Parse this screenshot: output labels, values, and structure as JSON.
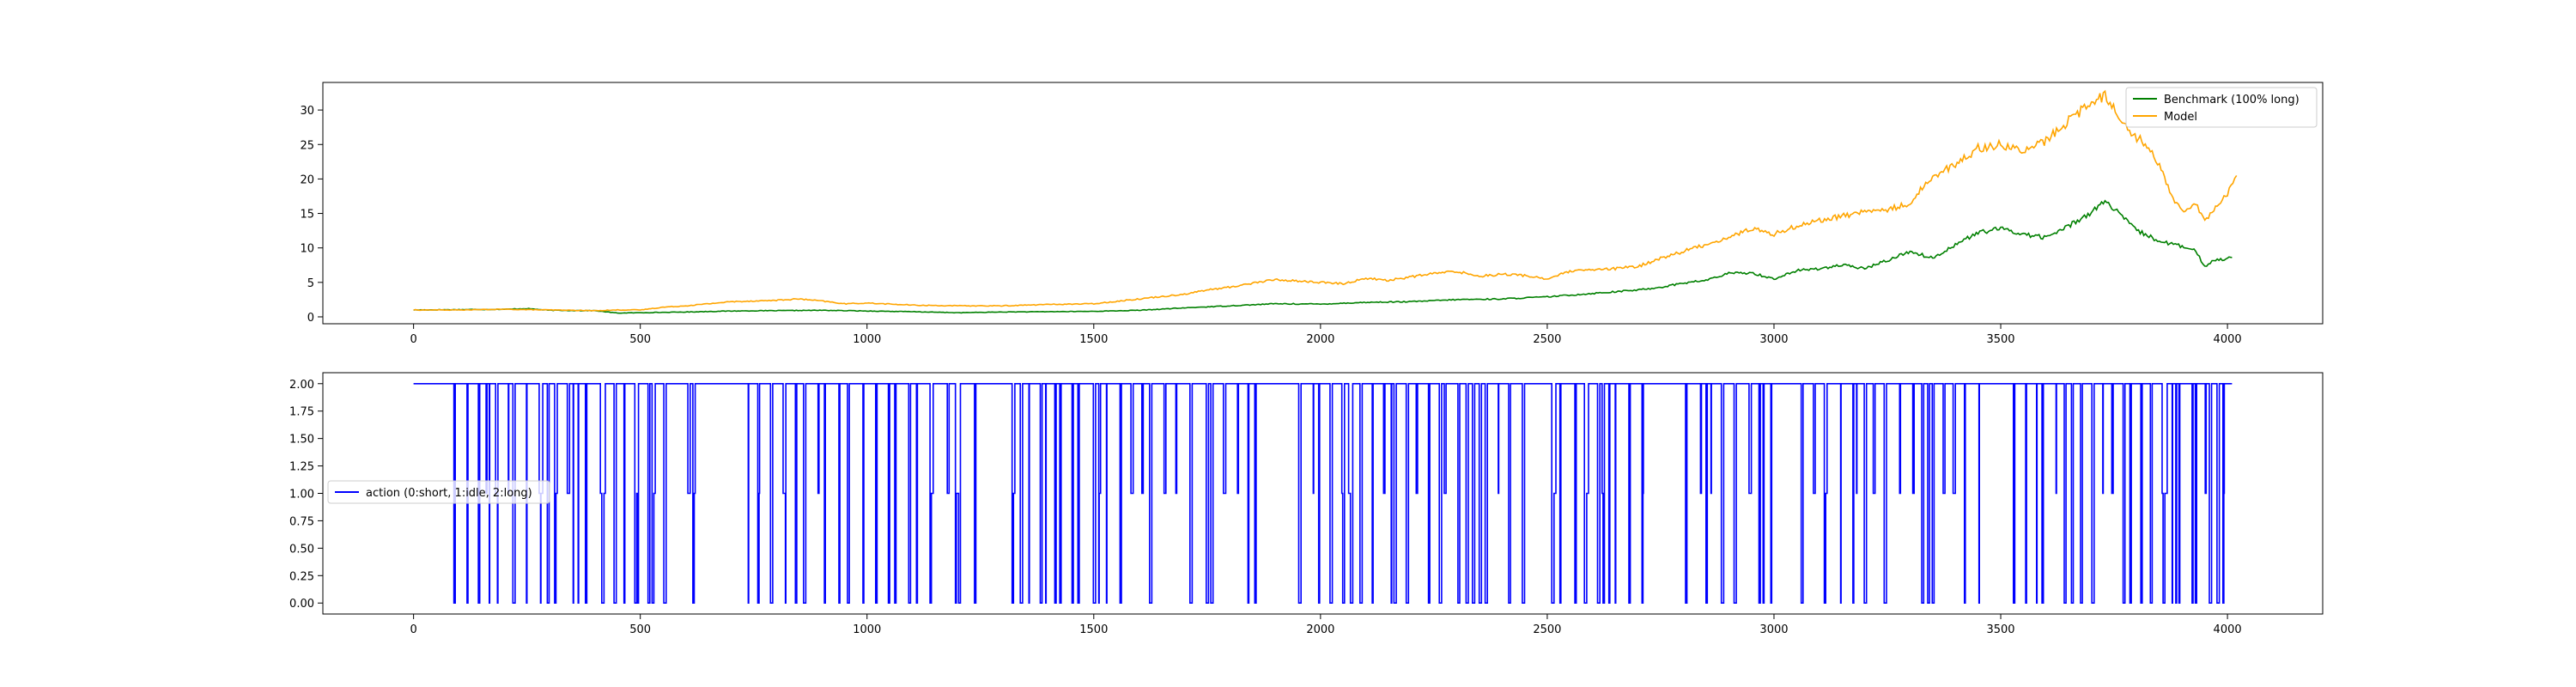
{
  "chart_data": [
    {
      "type": "line",
      "xlim": [
        -200,
        4210
      ],
      "ylim": [
        -1,
        34
      ],
      "x_ticks": [
        0,
        500,
        1000,
        1500,
        2000,
        2500,
        3000,
        3500,
        4000
      ],
      "y_ticks": [
        0,
        5,
        10,
        15,
        20,
        25,
        30
      ],
      "grid": false,
      "legend_position": "top-right",
      "series": [
        {
          "name": "Benchmark (100% long)",
          "color": "#008000",
          "points": [
            [
              0,
              1.0
            ],
            [
              100,
              1.05
            ],
            [
              200,
              1.1
            ],
            [
              250,
              1.2
            ],
            [
              300,
              0.95
            ],
            [
              400,
              0.9
            ],
            [
              450,
              0.55
            ],
            [
              500,
              0.6
            ],
            [
              600,
              0.7
            ],
            [
              700,
              0.85
            ],
            [
              800,
              0.9
            ],
            [
              900,
              0.95
            ],
            [
              1000,
              0.85
            ],
            [
              1100,
              0.75
            ],
            [
              1200,
              0.6
            ],
            [
              1300,
              0.7
            ],
            [
              1400,
              0.75
            ],
            [
              1500,
              0.8
            ],
            [
              1600,
              0.95
            ],
            [
              1700,
              1.3
            ],
            [
              1800,
              1.6
            ],
            [
              1900,
              1.9
            ],
            [
              2000,
              1.85
            ],
            [
              2100,
              2.1
            ],
            [
              2200,
              2.2
            ],
            [
              2300,
              2.5
            ],
            [
              2400,
              2.6
            ],
            [
              2500,
              2.9
            ],
            [
              2600,
              3.4
            ],
            [
              2700,
              3.9
            ],
            [
              2750,
              4.3
            ],
            [
              2800,
              4.9
            ],
            [
              2850,
              5.3
            ],
            [
              2900,
              6.3
            ],
            [
              2950,
              6.4
            ],
            [
              3000,
              5.5
            ],
            [
              3050,
              6.7
            ],
            [
              3100,
              7.0
            ],
            [
              3150,
              7.5
            ],
            [
              3200,
              7.0
            ],
            [
              3250,
              8.2
            ],
            [
              3300,
              9.5
            ],
            [
              3350,
              8.5
            ],
            [
              3400,
              10.5
            ],
            [
              3450,
              12.2
            ],
            [
              3500,
              12.8
            ],
            [
              3550,
              12.0
            ],
            [
              3600,
              11.5
            ],
            [
              3650,
              13.2
            ],
            [
              3700,
              15.2
            ],
            [
              3730,
              16.8
            ],
            [
              3760,
              15.0
            ],
            [
              3800,
              12.5
            ],
            [
              3850,
              11.0
            ],
            [
              3900,
              10.2
            ],
            [
              3930,
              9.5
            ],
            [
              3950,
              7.3
            ],
            [
              3970,
              8.2
            ],
            [
              4000,
              8.5
            ],
            [
              4010,
              8.6
            ]
          ]
        },
        {
          "name": "Model",
          "color": "#ffa500",
          "points": [
            [
              0,
              1.0
            ],
            [
              100,
              1.0
            ],
            [
              200,
              1.1
            ],
            [
              300,
              1.0
            ],
            [
              400,
              0.9
            ],
            [
              450,
              1.0
            ],
            [
              500,
              1.0
            ],
            [
              550,
              1.4
            ],
            [
              600,
              1.6
            ],
            [
              700,
              2.2
            ],
            [
              800,
              2.4
            ],
            [
              850,
              2.6
            ],
            [
              900,
              2.3
            ],
            [
              950,
              1.9
            ],
            [
              1000,
              2.0
            ],
            [
              1100,
              1.7
            ],
            [
              1200,
              1.6
            ],
            [
              1300,
              1.6
            ],
            [
              1400,
              1.8
            ],
            [
              1500,
              1.9
            ],
            [
              1600,
              2.6
            ],
            [
              1700,
              3.3
            ],
            [
              1750,
              3.9
            ],
            [
              1800,
              4.3
            ],
            [
              1850,
              4.9
            ],
            [
              1900,
              5.4
            ],
            [
              1950,
              5.2
            ],
            [
              2000,
              5.0
            ],
            [
              2050,
              4.8
            ],
            [
              2100,
              5.6
            ],
            [
              2150,
              5.3
            ],
            [
              2200,
              5.8
            ],
            [
              2250,
              6.3
            ],
            [
              2300,
              6.6
            ],
            [
              2350,
              5.9
            ],
            [
              2400,
              6.2
            ],
            [
              2450,
              6.0
            ],
            [
              2500,
              5.5
            ],
            [
              2550,
              6.6
            ],
            [
              2600,
              6.8
            ],
            [
              2650,
              7.0
            ],
            [
              2700,
              7.3
            ],
            [
              2750,
              8.5
            ],
            [
              2800,
              9.5
            ],
            [
              2850,
              10.5
            ],
            [
              2900,
              11.5
            ],
            [
              2950,
              12.8
            ],
            [
              3000,
              12.0
            ],
            [
              3050,
              13.2
            ],
            [
              3100,
              14.0
            ],
            [
              3150,
              14.6
            ],
            [
              3200,
              15.3
            ],
            [
              3250,
              15.5
            ],
            [
              3300,
              16.5
            ],
            [
              3350,
              20.5
            ],
            [
              3400,
              22.0
            ],
            [
              3450,
              24.5
            ],
            [
              3500,
              25.0
            ],
            [
              3550,
              24.0
            ],
            [
              3600,
              25.5
            ],
            [
              3650,
              28.5
            ],
            [
              3700,
              31.0
            ],
            [
              3730,
              32.2
            ],
            [
              3760,
              29.5
            ],
            [
              3780,
              27.0
            ],
            [
              3800,
              26.0
            ],
            [
              3830,
              24.5
            ],
            [
              3850,
              22.0
            ],
            [
              3880,
              17.0
            ],
            [
              3900,
              15.5
            ],
            [
              3930,
              16.5
            ],
            [
              3950,
              14.0
            ],
            [
              3970,
              15.5
            ],
            [
              4000,
              18.0
            ],
            [
              4020,
              20.5
            ]
          ]
        }
      ]
    },
    {
      "type": "line",
      "xlim": [
        -200,
        4210
      ],
      "ylim": [
        -0.1,
        2.1
      ],
      "x_ticks": [
        0,
        500,
        1000,
        1500,
        2000,
        2500,
        3000,
        3500,
        4000
      ],
      "y_ticks": [
        "0.00",
        "0.25",
        "0.50",
        "0.75",
        "1.00",
        "1.25",
        "1.50",
        "1.75",
        "2.00"
      ],
      "grid": false,
      "legend_position": "center-left",
      "x_range": [
        0,
        4010
      ],
      "series": [
        {
          "name": "action (0:short, 1:idle, 2:long)",
          "color": "#0000ff",
          "step": "post",
          "values_note": "",
          "points": []
        }
      ]
    }
  ]
}
